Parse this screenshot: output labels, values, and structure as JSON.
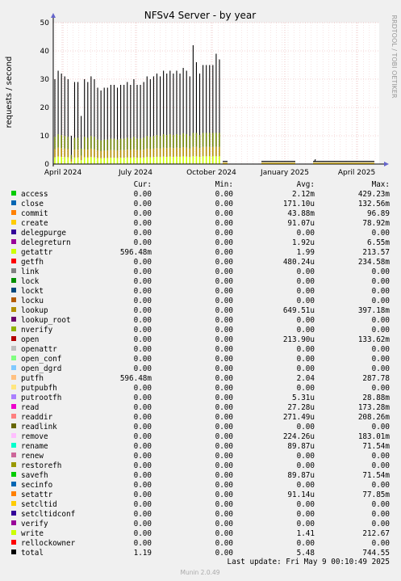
{
  "chart_data": {
    "type": "area",
    "title": "NFSv4 Server - by year",
    "ylabel": "requests / second",
    "side_label": "RRDTOOL / TOBI OETIKER",
    "ylim": [
      0,
      50
    ],
    "y_ticks": [
      0,
      10,
      20,
      30,
      40,
      50
    ],
    "x_ticks": [
      "April 2024",
      "July 2024",
      "October 2024",
      "January 2025",
      "April 2025"
    ],
    "grid": true,
    "legend_headers": [
      "Cur:",
      "Min:",
      "Avg:",
      "Max:"
    ],
    "series": [
      {
        "name": "access",
        "color": "#00cc00",
        "cur": "0.00",
        "min": "0.00",
        "avg": "2.12m",
        "max": "429.23m"
      },
      {
        "name": "close",
        "color": "#0066b3",
        "cur": "0.00",
        "min": "0.00",
        "avg": "171.10u",
        "max": "132.56m"
      },
      {
        "name": "commit",
        "color": "#ff8000",
        "cur": "0.00",
        "min": "0.00",
        "avg": "43.88m",
        "max": "96.89"
      },
      {
        "name": "create",
        "color": "#ffcc00",
        "cur": "0.00",
        "min": "0.00",
        "avg": "91.07u",
        "max": "78.92m"
      },
      {
        "name": "delegpurge",
        "color": "#330099",
        "cur": "0.00",
        "min": "0.00",
        "avg": "0.00",
        "max": "0.00"
      },
      {
        "name": "delegreturn",
        "color": "#990099",
        "cur": "0.00",
        "min": "0.00",
        "avg": "1.92u",
        "max": "6.55m"
      },
      {
        "name": "getattr",
        "color": "#ccff00",
        "cur": "596.48m",
        "min": "0.00",
        "avg": "1.99",
        "max": "213.57"
      },
      {
        "name": "getfh",
        "color": "#ff0000",
        "cur": "0.00",
        "min": "0.00",
        "avg": "480.24u",
        "max": "234.58m"
      },
      {
        "name": "link",
        "color": "#808080",
        "cur": "0.00",
        "min": "0.00",
        "avg": "0.00",
        "max": "0.00"
      },
      {
        "name": "lock",
        "color": "#008f00",
        "cur": "0.00",
        "min": "0.00",
        "avg": "0.00",
        "max": "0.00"
      },
      {
        "name": "lockt",
        "color": "#00487d",
        "cur": "0.00",
        "min": "0.00",
        "avg": "0.00",
        "max": "0.00"
      },
      {
        "name": "locku",
        "color": "#b35a00",
        "cur": "0.00",
        "min": "0.00",
        "avg": "0.00",
        "max": "0.00"
      },
      {
        "name": "lookup",
        "color": "#b38f00",
        "cur": "0.00",
        "min": "0.00",
        "avg": "649.51u",
        "max": "397.18m"
      },
      {
        "name": "lookup_root",
        "color": "#6b006b",
        "cur": "0.00",
        "min": "0.00",
        "avg": "0.00",
        "max": "0.00"
      },
      {
        "name": "nverify",
        "color": "#8fb300",
        "cur": "0.00",
        "min": "0.00",
        "avg": "0.00",
        "max": "0.00"
      },
      {
        "name": "open",
        "color": "#b30000",
        "cur": "0.00",
        "min": "0.00",
        "avg": "213.90u",
        "max": "133.62m"
      },
      {
        "name": "openattr",
        "color": "#bebebe",
        "cur": "0.00",
        "min": "0.00",
        "avg": "0.00",
        "max": "0.00"
      },
      {
        "name": "open_conf",
        "color": "#80ff80",
        "cur": "0.00",
        "min": "0.00",
        "avg": "0.00",
        "max": "0.00"
      },
      {
        "name": "open_dgrd",
        "color": "#80c9ff",
        "cur": "0.00",
        "min": "0.00",
        "avg": "0.00",
        "max": "0.00"
      },
      {
        "name": "putfh",
        "color": "#ffc080",
        "cur": "596.48m",
        "min": "0.00",
        "avg": "2.04",
        "max": "287.78"
      },
      {
        "name": "putpubfh",
        "color": "#ffe680",
        "cur": "0.00",
        "min": "0.00",
        "avg": "0.00",
        "max": "0.00"
      },
      {
        "name": "putrootfh",
        "color": "#aa80ff",
        "cur": "0.00",
        "min": "0.00",
        "avg": "5.31u",
        "max": "28.88m"
      },
      {
        "name": "read",
        "color": "#ee00cc",
        "cur": "0.00",
        "min": "0.00",
        "avg": "27.28u",
        "max": "173.28m"
      },
      {
        "name": "readdir",
        "color": "#ff8080",
        "cur": "0.00",
        "min": "0.00",
        "avg": "271.49u",
        "max": "208.26m"
      },
      {
        "name": "readlink",
        "color": "#666600",
        "cur": "0.00",
        "min": "0.00",
        "avg": "0.00",
        "max": "0.00"
      },
      {
        "name": "remove",
        "color": "#ffbfff",
        "cur": "0.00",
        "min": "0.00",
        "avg": "224.26u",
        "max": "183.01m"
      },
      {
        "name": "rename",
        "color": "#00ffcc",
        "cur": "0.00",
        "min": "0.00",
        "avg": "89.87u",
        "max": "71.54m"
      },
      {
        "name": "renew",
        "color": "#cc6699",
        "cur": "0.00",
        "min": "0.00",
        "avg": "0.00",
        "max": "0.00"
      },
      {
        "name": "restorefh",
        "color": "#999900",
        "cur": "0.00",
        "min": "0.00",
        "avg": "0.00",
        "max": "0.00"
      },
      {
        "name": "savefh",
        "color": "#00cc00",
        "cur": "0.00",
        "min": "0.00",
        "avg": "89.87u",
        "max": "71.54m"
      },
      {
        "name": "secinfo",
        "color": "#0066b3",
        "cur": "0.00",
        "min": "0.00",
        "avg": "0.00",
        "max": "0.00"
      },
      {
        "name": "setattr",
        "color": "#ff8000",
        "cur": "0.00",
        "min": "0.00",
        "avg": "91.14u",
        "max": "77.85m"
      },
      {
        "name": "setcltid",
        "color": "#ffcc00",
        "cur": "0.00",
        "min": "0.00",
        "avg": "0.00",
        "max": "0.00"
      },
      {
        "name": "setcltidconf",
        "color": "#330099",
        "cur": "0.00",
        "min": "0.00",
        "avg": "0.00",
        "max": "0.00"
      },
      {
        "name": "verify",
        "color": "#990099",
        "cur": "0.00",
        "min": "0.00",
        "avg": "0.00",
        "max": "0.00"
      },
      {
        "name": "write",
        "color": "#ccff00",
        "cur": "0.00",
        "min": "0.00",
        "avg": "1.41",
        "max": "212.67"
      },
      {
        "name": "rellockowner",
        "color": "#ff0000",
        "cur": "0.00",
        "min": "0.00",
        "avg": "0.00",
        "max": "0.00"
      },
      {
        "name": "total",
        "color": "#000000",
        "cur": "1.19",
        "min": "0.00",
        "avg": "5.48",
        "max": "744.55"
      }
    ],
    "total_spikes": {
      "x_label_positions_note_removed": null,
      "values": [
        30,
        33,
        32,
        31,
        30,
        10,
        29,
        29,
        17,
        30,
        29,
        31,
        30,
        27,
        26,
        27,
        27,
        28,
        28,
        27,
        28,
        28,
        29,
        28,
        30,
        28,
        28,
        29,
        31,
        30,
        31,
        32,
        31,
        33,
        32,
        33,
        32,
        33,
        32,
        34,
        33,
        31,
        42,
        36,
        32,
        35,
        35,
        35,
        35,
        39,
        37
      ]
    },
    "last_update": "Last update: Fri May  9 00:10:49 2025",
    "footer": "Munin 2.0.49"
  }
}
